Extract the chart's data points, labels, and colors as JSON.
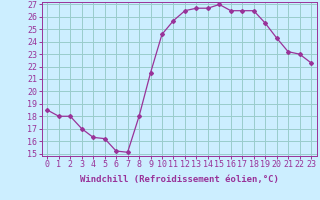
{
  "x": [
    0,
    1,
    2,
    3,
    4,
    5,
    6,
    7,
    8,
    9,
    10,
    11,
    12,
    13,
    14,
    15,
    16,
    17,
    18,
    19,
    20,
    21,
    22,
    23
  ],
  "y": [
    18.5,
    18.0,
    18.0,
    17.0,
    16.3,
    16.2,
    15.2,
    15.1,
    18.0,
    21.5,
    24.6,
    25.7,
    26.5,
    26.7,
    26.7,
    27.0,
    26.5,
    26.5,
    26.5,
    25.5,
    24.3,
    23.2,
    23.0,
    22.3
  ],
  "color": "#993399",
  "bg_color": "#cceeff",
  "grid_color": "#99cccc",
  "xlabel": "Windchill (Refroidissement éolien,°C)",
  "ylim": [
    15,
    27
  ],
  "xlim": [
    -0.5,
    23.5
  ],
  "yticks": [
    15,
    16,
    17,
    18,
    19,
    20,
    21,
    22,
    23,
    24,
    25,
    26,
    27
  ],
  "xticks": [
    0,
    1,
    2,
    3,
    4,
    5,
    6,
    7,
    8,
    9,
    10,
    11,
    12,
    13,
    14,
    15,
    16,
    17,
    18,
    19,
    20,
    21,
    22,
    23
  ],
  "xlabel_fontsize": 6.5,
  "tick_fontsize": 6.0,
  "marker": "D",
  "marker_size": 2.0,
  "linewidth": 0.9
}
